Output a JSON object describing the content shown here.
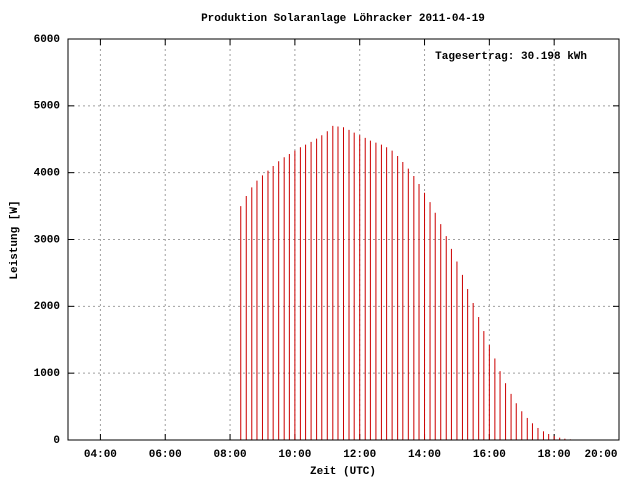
{
  "chart_data": {
    "type": "impulse",
    "title": "Produktion Solaranlage Löhracker 2011-04-19",
    "annotation": "Tagesertrag: 30.198 kWh",
    "xlabel": "Zeit (UTC)",
    "ylabel": "Leistung [W]",
    "color": "#cc0000",
    "grid": true,
    "xlim": [
      3,
      20
    ],
    "xticks": [
      {
        "value": 4,
        "label": "04:00"
      },
      {
        "value": 6,
        "label": "06:00"
      },
      {
        "value": 8,
        "label": "08:00"
      },
      {
        "value": 10,
        "label": "10:00"
      },
      {
        "value": 12,
        "label": "12:00"
      },
      {
        "value": 14,
        "label": "14:00"
      },
      {
        "value": 16,
        "label": "16:00"
      },
      {
        "value": 18,
        "label": "18:00"
      },
      {
        "value": 20,
        "label": "20:00"
      }
    ],
    "ylim": [
      0,
      6000
    ],
    "yticks": [
      0,
      1000,
      2000,
      3000,
      4000,
      5000,
      6000
    ],
    "x": [
      8.33,
      8.5,
      8.67,
      8.83,
      9.0,
      9.17,
      9.33,
      9.5,
      9.67,
      9.83,
      10.0,
      10.17,
      10.33,
      10.5,
      10.67,
      10.83,
      11.0,
      11.17,
      11.33,
      11.5,
      11.67,
      11.83,
      12.0,
      12.17,
      12.33,
      12.5,
      12.67,
      12.83,
      13.0,
      13.17,
      13.33,
      13.5,
      13.67,
      13.83,
      14.0,
      14.17,
      14.33,
      14.5,
      14.67,
      14.83,
      15.0,
      15.17,
      15.33,
      15.5,
      15.67,
      15.83,
      16.0,
      16.17,
      16.33,
      16.5,
      16.67,
      16.83,
      17.0,
      17.17,
      17.33,
      17.5,
      17.67,
      17.83,
      18.0,
      18.17,
      18.33,
      18.5
    ],
    "values": [
      3500,
      3650,
      3780,
      3880,
      3960,
      4030,
      4100,
      4170,
      4230,
      4280,
      4330,
      4380,
      4420,
      4460,
      4510,
      4560,
      4620,
      4700,
      4690,
      4680,
      4640,
      4600,
      4560,
      4520,
      4480,
      4450,
      4420,
      4380,
      4330,
      4250,
      4160,
      4060,
      3950,
      3830,
      3700,
      3560,
      3400,
      3230,
      3050,
      2860,
      2670,
      2470,
      2260,
      2050,
      1840,
      1630,
      1420,
      1220,
      1030,
      850,
      690,
      550,
      430,
      330,
      250,
      180,
      130,
      90,
      60,
      35,
      20,
      10
    ]
  }
}
